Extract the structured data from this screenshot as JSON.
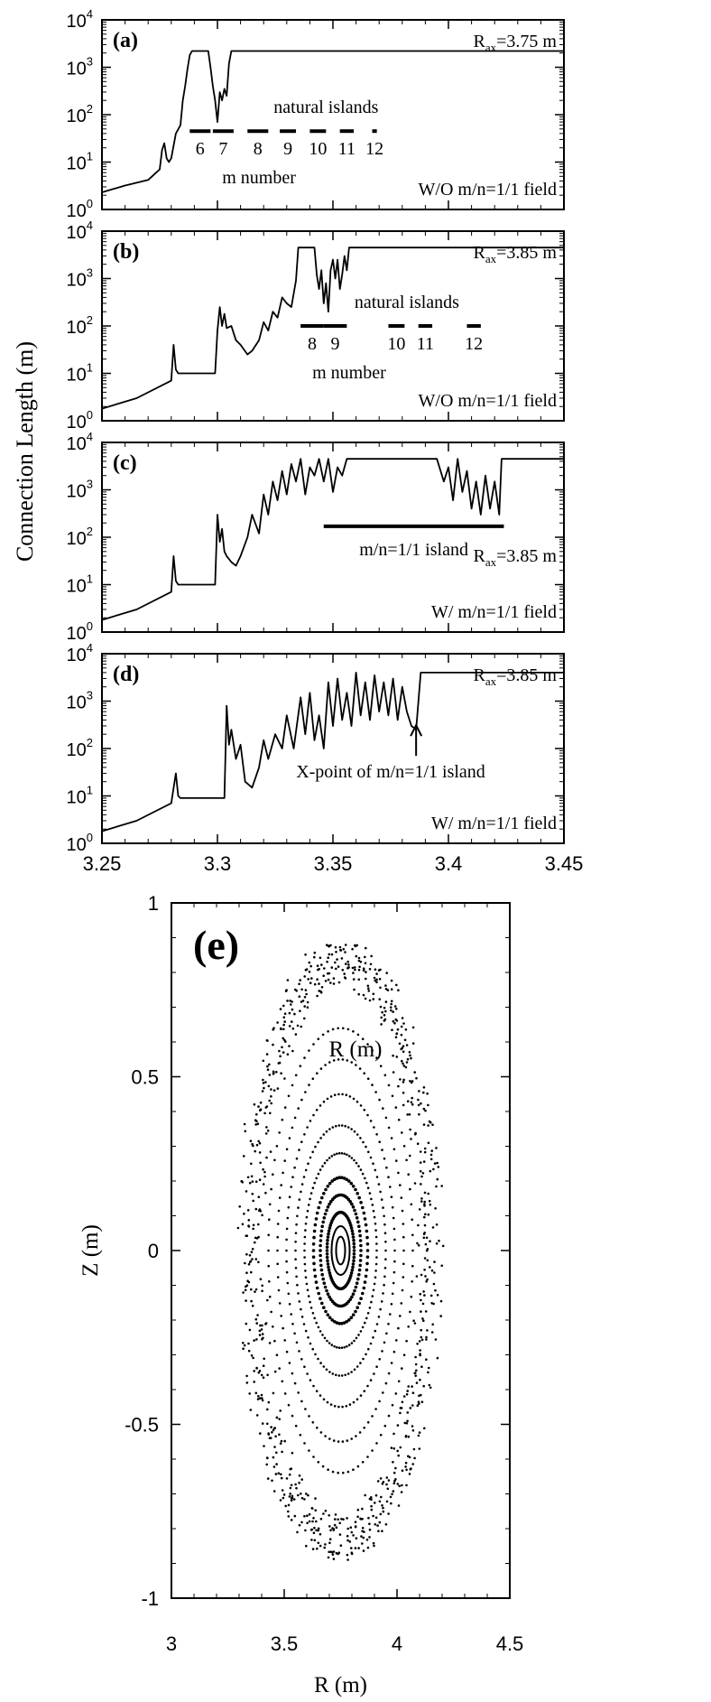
{
  "figure": {
    "ylabel": "Connection Length (m)",
    "xlabel": "R (m)",
    "x_ticks": [
      "3.25",
      "3.3",
      "3.35",
      "3.4",
      "3.45"
    ],
    "y_ticks": [
      {
        "base": "10",
        "exp": "4"
      },
      {
        "base": "10",
        "exp": "3"
      },
      {
        "base": "10",
        "exp": "2"
      },
      {
        "base": "10",
        "exp": "1"
      },
      {
        "base": "10",
        "exp": "0"
      }
    ]
  },
  "chart_data": [
    {
      "type": "line",
      "panel": "(a)",
      "xlim": [
        3.25,
        3.45
      ],
      "ylim": [
        1,
        10000
      ],
      "yscale": "log",
      "axis_label": {
        "prefix": "R",
        "sub": "ax",
        "suffix": "=3.75 m"
      },
      "condition": "W/O  m/n=1/1 field",
      "annotation": "natural islands",
      "annotation2": "m number",
      "islands": [
        {
          "label": "6",
          "x": [
            3.288,
            3.297
          ]
        },
        {
          "label": "7",
          "x": [
            3.298,
            3.307
          ]
        },
        {
          "label": "8",
          "x": [
            3.313,
            3.322
          ]
        },
        {
          "label": "9",
          "x": [
            3.327,
            3.334
          ]
        },
        {
          "label": "10",
          "x": [
            3.34,
            3.347
          ]
        },
        {
          "label": "11",
          "x": [
            3.353,
            3.359
          ]
        },
        {
          "label": "12",
          "x": [
            3.367,
            3.369
          ]
        }
      ],
      "series": [
        {
          "x": [
            3.25,
            3.26,
            3.27,
            3.275,
            3.276,
            3.277,
            3.278,
            3.279,
            3.28,
            3.282,
            3.284,
            3.285,
            3.286,
            3.287,
            3.288,
            3.289,
            3.29,
            3.2905,
            3.2935,
            3.295,
            3.296,
            3.297,
            3.298,
            3.299,
            3.3,
            3.301,
            3.302,
            3.303,
            3.304,
            3.305,
            3.306,
            3.45
          ],
          "y": [
            2.3,
            3.2,
            4.2,
            7,
            18,
            25,
            12,
            10,
            12,
            40,
            60,
            200,
            400,
            900,
            1800,
            2200,
            2200,
            2200,
            2200,
            2200,
            2200,
            1000,
            400,
            200,
            70,
            300,
            200,
            350,
            250,
            1200,
            2200,
            2200
          ]
        }
      ]
    },
    {
      "type": "line",
      "panel": "(b)",
      "xlim": [
        3.25,
        3.45
      ],
      "ylim": [
        1,
        10000
      ],
      "yscale": "log",
      "axis_label": {
        "prefix": "R",
        "sub": "ax",
        "suffix": "=3.85 m"
      },
      "condition": "W/O  m/n=1/1 field",
      "annotation": "natural islands",
      "annotation2": "m number",
      "islands": [
        {
          "label": "8",
          "x": [
            3.336,
            3.346
          ]
        },
        {
          "label": "9",
          "x": [
            3.346,
            3.356
          ]
        },
        {
          "label": "10",
          "x": [
            3.374,
            3.381
          ]
        },
        {
          "label": "11",
          "x": [
            3.387,
            3.393
          ]
        },
        {
          "label": "12",
          "x": [
            3.408,
            3.414
          ]
        }
      ],
      "series": [
        {
          "x": [
            3.25,
            3.265,
            3.28,
            3.281,
            3.282,
            3.283,
            3.299,
            3.3,
            3.301,
            3.302,
            3.303,
            3.304,
            3.306,
            3.308,
            3.31,
            3.313,
            3.315,
            3.318,
            3.32,
            3.322,
            3.324,
            3.326,
            3.328,
            3.33,
            3.332,
            3.334,
            3.335,
            3.342,
            3.343,
            3.344,
            3.345,
            3.346,
            3.347,
            3.348,
            3.349,
            3.35,
            3.351,
            3.352,
            3.353,
            3.354,
            3.355,
            3.356,
            3.357,
            3.45
          ],
          "y": [
            1.8,
            3,
            7,
            40,
            12,
            10,
            10,
            80,
            250,
            100,
            180,
            90,
            100,
            50,
            40,
            25,
            30,
            50,
            120,
            80,
            200,
            150,
            400,
            300,
            250,
            900,
            4500,
            4500,
            1200,
            600,
            1500,
            300,
            800,
            200,
            1500,
            2500,
            1000,
            2500,
            600,
            1200,
            3000,
            1500,
            4500,
            4500
          ]
        }
      ]
    },
    {
      "type": "line",
      "panel": "(c)",
      "xlim": [
        3.25,
        3.45
      ],
      "ylim": [
        1,
        10000
      ],
      "yscale": "log",
      "axis_label": {
        "prefix": "R",
        "sub": "ax",
        "suffix": "=3.85 m"
      },
      "condition": "W/  m/n=1/1 field",
      "annotation": "m/n=1/1 island",
      "island_bar": [
        3.346,
        3.424
      ],
      "series": [
        {
          "x": [
            3.25,
            3.265,
            3.28,
            3.281,
            3.282,
            3.283,
            3.299,
            3.3,
            3.301,
            3.302,
            3.303,
            3.304,
            3.306,
            3.308,
            3.31,
            3.313,
            3.315,
            3.318,
            3.32,
            3.322,
            3.324,
            3.326,
            3.328,
            3.33,
            3.332,
            3.334,
            3.336,
            3.338,
            3.34,
            3.342,
            3.344,
            3.346,
            3.348,
            3.35,
            3.352,
            3.354,
            3.356,
            3.357,
            3.395,
            3.398,
            3.4,
            3.402,
            3.404,
            3.406,
            3.408,
            3.41,
            3.412,
            3.414,
            3.416,
            3.418,
            3.42,
            3.422,
            3.423,
            3.45
          ],
          "y": [
            1.8,
            3,
            7,
            40,
            12,
            10,
            10,
            300,
            80,
            150,
            50,
            40,
            30,
            25,
            40,
            100,
            300,
            120,
            800,
            300,
            1500,
            600,
            2500,
            800,
            3500,
            1500,
            4500,
            800,
            3000,
            2000,
            4500,
            1500,
            4500,
            900,
            3000,
            2000,
            4500,
            4500,
            4500,
            1500,
            3000,
            600,
            4500,
            900,
            2500,
            400,
            1500,
            300,
            2000,
            400,
            1500,
            300,
            4500,
            4500
          ]
        }
      ]
    },
    {
      "type": "line",
      "panel": "(d)",
      "xlim": [
        3.25,
        3.45
      ],
      "ylim": [
        1,
        10000
      ],
      "yscale": "log",
      "axis_label": {
        "prefix": "R",
        "sub": "ax",
        "suffix": "=3.85 m"
      },
      "condition": "W/  m/n=1/1 field",
      "annotation": "X-point of m/n=1/1 island",
      "annotation_x": 3.386,
      "series": [
        {
          "x": [
            3.25,
            3.265,
            3.28,
            3.282,
            3.283,
            3.284,
            3.303,
            3.304,
            3.305,
            3.306,
            3.308,
            3.31,
            3.312,
            3.315,
            3.318,
            3.32,
            3.322,
            3.325,
            3.328,
            3.33,
            3.333,
            3.336,
            3.338,
            3.34,
            3.342,
            3.344,
            3.346,
            3.348,
            3.35,
            3.352,
            3.354,
            3.356,
            3.358,
            3.36,
            3.362,
            3.364,
            3.366,
            3.368,
            3.37,
            3.372,
            3.374,
            3.376,
            3.378,
            3.38,
            3.382,
            3.384,
            3.386,
            3.388,
            3.45
          ],
          "y": [
            1.8,
            3,
            7,
            30,
            10,
            9,
            9,
            800,
            120,
            250,
            60,
            120,
            20,
            15,
            40,
            150,
            60,
            200,
            100,
            500,
            100,
            1200,
            200,
            1500,
            150,
            500,
            100,
            2500,
            300,
            3000,
            400,
            1500,
            300,
            4000,
            500,
            2500,
            400,
            3500,
            600,
            2500,
            500,
            3000,
            400,
            2000,
            600,
            300,
            250,
            4000,
            4000
          ]
        }
      ]
    },
    {
      "type": "scatter",
      "panel": "(e)",
      "xlabel": "R (m)",
      "ylabel": "Z (m)",
      "xlim": [
        3,
        4.5
      ],
      "ylim": [
        -1,
        1
      ],
      "x_ticks": [
        "3",
        "3.5",
        "4",
        "4.5"
      ],
      "y_ticks": [
        "1",
        "0.5",
        "0",
        "-0.5",
        "-1"
      ],
      "axis_center": [
        3.75,
        0
      ],
      "surfaces": [
        {
          "half_width": 0.02,
          "half_height": 0.04,
          "style": "solid"
        },
        {
          "half_width": 0.04,
          "half_height": 0.07,
          "style": "solid"
        },
        {
          "half_width": 0.06,
          "half_height": 0.11,
          "style": "dense"
        },
        {
          "half_width": 0.09,
          "half_height": 0.16,
          "style": "dense"
        },
        {
          "half_width": 0.12,
          "half_height": 0.21,
          "style": "dense"
        },
        {
          "half_width": 0.16,
          "half_height": 0.28,
          "style": "dotted"
        },
        {
          "half_width": 0.2,
          "half_height": 0.36,
          "style": "dotted"
        },
        {
          "half_width": 0.24,
          "half_height": 0.45,
          "style": "dotted"
        },
        {
          "half_width": 0.28,
          "half_height": 0.55,
          "style": "dotted"
        },
        {
          "half_width": 0.32,
          "half_height": 0.64,
          "style": "dotted"
        },
        {
          "half_width": 0.38,
          "half_height": 0.8,
          "style": "stochastic"
        },
        {
          "half_width": 0.41,
          "half_height": 0.86,
          "style": "stochastic"
        }
      ]
    }
  ]
}
